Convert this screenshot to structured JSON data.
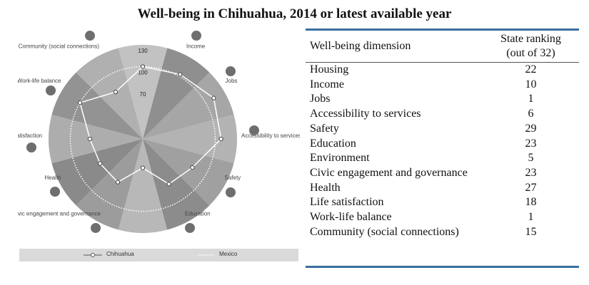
{
  "title": "Well-being in Chihuahua, 2014 or latest available year",
  "chart_data": {
    "type": "radar",
    "axes": [
      "Housing",
      "Income",
      "Jobs",
      "Accessibility to services",
      "Safety",
      "Education",
      "Environment",
      "Civic engagement and governance",
      "Health",
      "Life satisfaction",
      "Work-life balance",
      "Community (social connections)"
    ],
    "tick_labels": [
      "130",
      "100",
      "70"
    ],
    "series": [
      {
        "name": "Chihuahua",
        "values": [
          100,
          103,
          113,
          108,
          79,
          72,
          40,
          69,
          68,
          73,
          100,
          75
        ]
      },
      {
        "name": "Mexico",
        "values": [
          100,
          100,
          100,
          100,
          100,
          100,
          100,
          100,
          100,
          100,
          100,
          100
        ]
      }
    ],
    "range": [
      0,
      130
    ],
    "legend": "bottom",
    "colors": {
      "chihuahua": "#ffffff",
      "mexico": "#ffffff"
    }
  },
  "table": {
    "header_dimension": "Well-being dimension",
    "header_rank_1": "State ranking",
    "header_rank_2": "(out of 32)",
    "rows": [
      {
        "dimension": "Housing",
        "rank": "22"
      },
      {
        "dimension": "Income",
        "rank": "10"
      },
      {
        "dimension": "Jobs",
        "rank": "1"
      },
      {
        "dimension": "Accessibility to services",
        "rank": "6"
      },
      {
        "dimension": "Safety",
        "rank": "29"
      },
      {
        "dimension": "Education",
        "rank": "23"
      },
      {
        "dimension": "Environment",
        "rank": "5"
      },
      {
        "dimension": "Civic engagement and governance",
        "rank": "23"
      },
      {
        "dimension": "Health",
        "rank": "27"
      },
      {
        "dimension": "Life satisfaction",
        "rank": "18"
      },
      {
        "dimension": "Work-life balance",
        "rank": "1"
      },
      {
        "dimension": "Community (social connections)",
        "rank": "15"
      }
    ]
  },
  "icons": [
    "house-icon",
    "money-icon",
    "briefcase-icon",
    "accessibility-icon",
    "safety-icon",
    "education-icon",
    "environment-icon",
    "governance-icon",
    "health-icon",
    "life-satisfaction-icon",
    "balance-icon",
    "community-icon"
  ],
  "colors": {
    "accent": "#3a6e9f",
    "legend_bg": "#dadada",
    "icon": "#6e6e6e"
  }
}
